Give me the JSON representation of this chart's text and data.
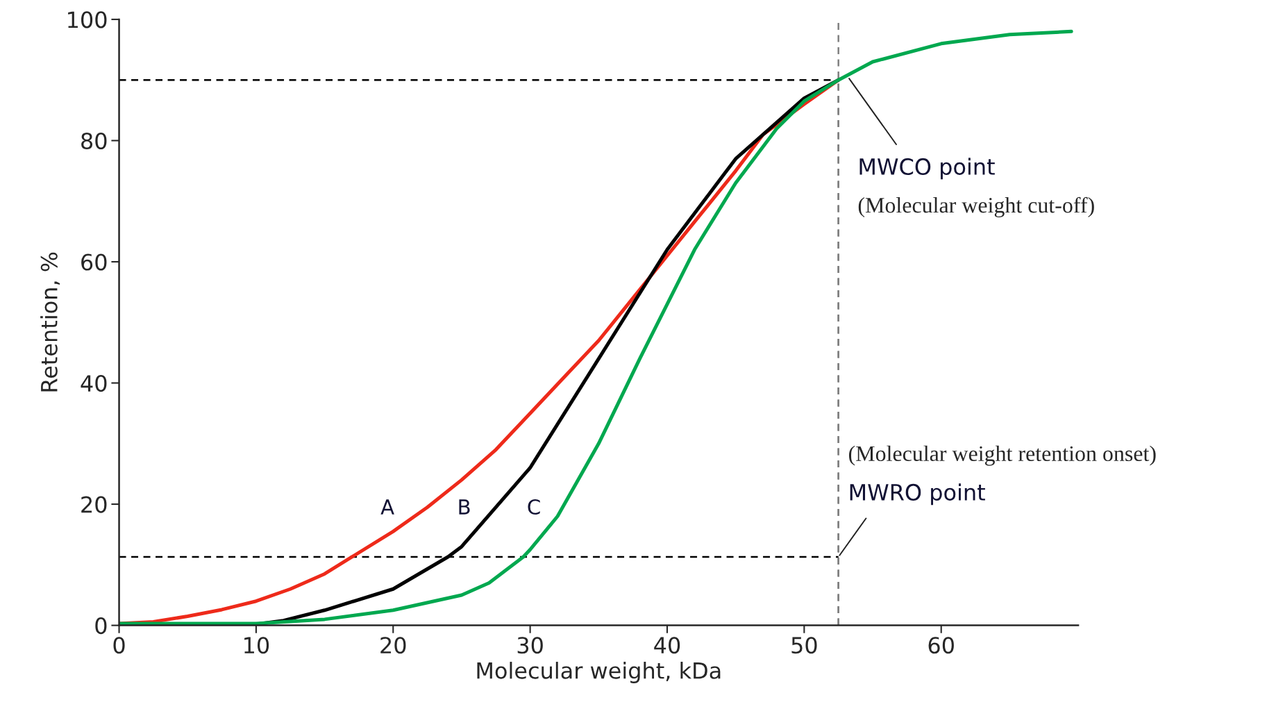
{
  "chart_data": {
    "type": "line",
    "xlabel": "Molecular weight, kDa",
    "ylabel": "Retention, %",
    "xlim": [
      0,
      70
    ],
    "ylim": [
      0,
      100
    ],
    "xticks": [
      0,
      10,
      20,
      30,
      40,
      50,
      60
    ],
    "yticks": [
      0,
      20,
      40,
      60,
      80,
      100
    ],
    "grid": false,
    "legend": false,
    "line_style": "solid",
    "marker": "none",
    "series": [
      {
        "name": "A",
        "color": "#ee2a1a",
        "x": [
          0,
          2.5,
          5,
          7.5,
          10,
          12.5,
          15,
          17,
          20,
          22.5,
          25,
          27.5,
          30,
          32.5,
          35,
          37.5,
          40,
          42.5,
          45,
          47,
          50,
          52.5
        ],
        "values": [
          0.3,
          0.6,
          1.5,
          2.6,
          4,
          6,
          8.5,
          11.3,
          15.5,
          19.5,
          24,
          29,
          35,
          41,
          47,
          54,
          61,
          68,
          75,
          81,
          86,
          90
        ]
      },
      {
        "name": "B",
        "color": "#000000",
        "x": [
          0,
          10,
          12,
          15,
          20,
          24,
          25,
          30,
          35,
          40,
          45,
          50,
          52.5
        ],
        "values": [
          0,
          0.2,
          0.8,
          2.5,
          6,
          11.3,
          13,
          26,
          44,
          62,
          77,
          87,
          90
        ]
      },
      {
        "name": "C",
        "color": "#00a84f",
        "x": [
          0,
          10,
          15,
          20,
          25,
          27,
          29.5,
          30,
          32,
          35,
          38,
          40,
          42,
          45,
          48,
          50,
          52.5,
          55,
          60,
          65,
          69.5
        ],
        "values": [
          0.3,
          0.3,
          1,
          2.5,
          5,
          7,
          11.3,
          12.5,
          18,
          30,
          44,
          53,
          62,
          73,
          82,
          86.5,
          90,
          93,
          96,
          97.5,
          98
        ]
      }
    ],
    "ref_lines": [
      {
        "axis": "y",
        "value": 90,
        "color": "#000000",
        "line_style": "dashed"
      },
      {
        "axis": "y",
        "value": 11.3,
        "color": "#000000",
        "line_style": "dashed"
      },
      {
        "axis": "x",
        "value": 52.5,
        "color": "#808080",
        "line_style": "dashed"
      }
    ],
    "annotations": [
      {
        "text": "MWCO point",
        "x": 53.2,
        "y": 90.5
      },
      "(Molecular weight cut-off)",
      "(Molecular weight retention onset)",
      {
        "text": "MWRO point",
        "x": 52.5,
        "y": 11.3
      }
    ]
  }
}
